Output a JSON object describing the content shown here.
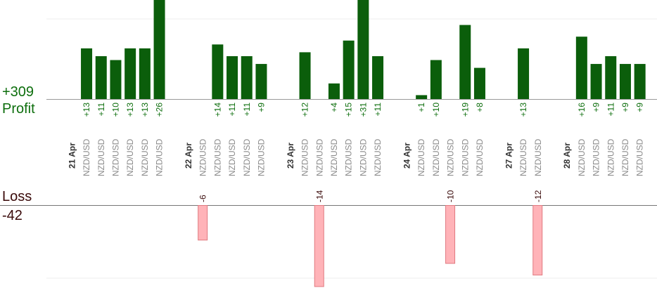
{
  "summary": {
    "profit_total": "+309",
    "profit_label": "Profit",
    "loss_label": "Loss",
    "loss_total": "-42"
  },
  "colors": {
    "profit_bar": "#0b5e0b",
    "profit_text": "#0d6e0d",
    "loss_bar_fill": "#ffb3b8",
    "loss_bar_stroke": "#e07a80",
    "loss_text": "#3a0a0a",
    "date_text": "#333333",
    "pair_text": "#8a8a8a"
  },
  "chart_data": {
    "type": "bar",
    "title": "",
    "groups": [
      {
        "date": "21 Apr",
        "trades": [
          {
            "pair": "NZD/USD",
            "value": 13,
            "label": "+13"
          },
          {
            "pair": "NZD/USD",
            "value": 11,
            "label": "+11"
          },
          {
            "pair": "NZD/USD",
            "value": 10,
            "label": "+10"
          },
          {
            "pair": "NZD/USD",
            "value": 13,
            "label": "+13"
          },
          {
            "pair": "NZD/USD",
            "value": 13,
            "label": "+13"
          },
          {
            "pair": "NZD/USD",
            "value": 26,
            "label": "+26"
          }
        ]
      },
      {
        "date": "22 Apr",
        "trades": [
          {
            "pair": "NZD/USD",
            "value": -6,
            "label": "-6"
          },
          {
            "pair": "NZD/USD",
            "value": 14,
            "label": "+14"
          },
          {
            "pair": "NZD/USD",
            "value": 11,
            "label": "+11"
          },
          {
            "pair": "NZD/USD",
            "value": 11,
            "label": "+11"
          },
          {
            "pair": "NZD/USD",
            "value": 9,
            "label": "+9"
          }
        ]
      },
      {
        "date": "23 Apr",
        "trades": [
          {
            "pair": "NZD/USD",
            "value": 12,
            "label": "+12"
          },
          {
            "pair": "NZD/USD",
            "value": -14,
            "label": "-14"
          },
          {
            "pair": "NZD/USD",
            "value": 4,
            "label": "+4"
          },
          {
            "pair": "NZD/USD",
            "value": 15,
            "label": "+15"
          },
          {
            "pair": "NZD/USD",
            "value": 31,
            "label": "+31"
          },
          {
            "pair": "NZD/USD",
            "value": 11,
            "label": "+11"
          }
        ]
      },
      {
        "date": "24 Apr",
        "trades": [
          {
            "pair": "NZD/USD",
            "value": 1,
            "label": "+1"
          },
          {
            "pair": "NZD/USD",
            "value": 10,
            "label": "+10"
          },
          {
            "pair": "NZD/USD",
            "value": -10,
            "label": "-10"
          },
          {
            "pair": "NZD/USD",
            "value": 19,
            "label": "+19"
          },
          {
            "pair": "NZD/USD",
            "value": 8,
            "label": "+8"
          }
        ]
      },
      {
        "date": "27 Apr",
        "trades": [
          {
            "pair": "NZD/USD",
            "value": 13,
            "label": "+13"
          },
          {
            "pair": "NZD/USD",
            "value": -12,
            "label": "-12"
          }
        ]
      },
      {
        "date": "28 Apr",
        "trades": [
          {
            "pair": "NZD/USD",
            "value": 16,
            "label": "+16"
          },
          {
            "pair": "NZD/USD",
            "value": 9,
            "label": "+9"
          },
          {
            "pair": "NZD/USD",
            "value": 11,
            "label": "+11"
          },
          {
            "pair": "NZD/USD",
            "value": 9,
            "label": "+9"
          },
          {
            "pair": "NZD/USD",
            "value": 9,
            "label": "+9"
          }
        ]
      }
    ]
  }
}
